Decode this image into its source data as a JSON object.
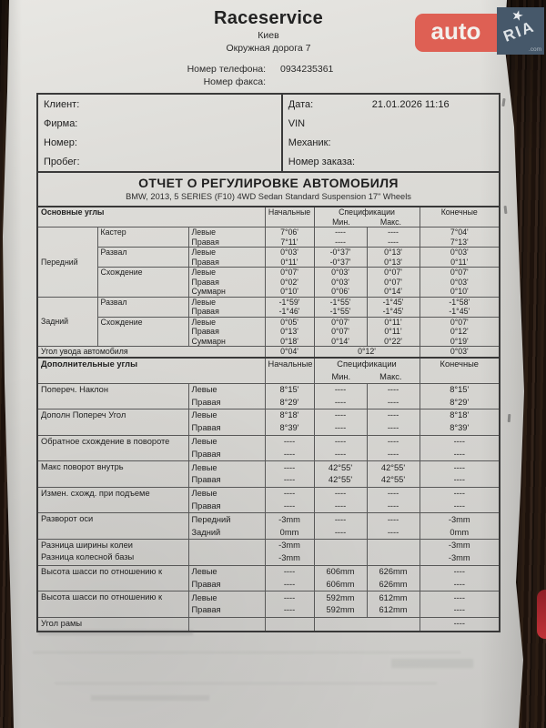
{
  "colors": {
    "paper": "#d8d7d3",
    "wood": "#241811",
    "table_border": "#3a3a3a",
    "logo_auto_bg": "#de6054",
    "logo_ria_bg": "#46586a",
    "red_object": "#a3232b"
  },
  "header": {
    "company": "Raceservice",
    "city": "Киев",
    "address": "Окружная дорога 7",
    "phone_label": "Номер телефона:",
    "phone_value": "0934235361",
    "fax_label": "Номер факса:"
  },
  "watermark": {
    "auto_text": "auto",
    "ria_text": "RIA",
    "com_text": ".com",
    "star_icon": "star"
  },
  "client_box": {
    "left_rows": [
      "Клиент:",
      "Фирма:",
      "Номер:",
      "Пробег:"
    ],
    "right_rows": [
      {
        "label": "Дата:",
        "value": "21.01.2026  11:16"
      },
      {
        "label": "VIN",
        "value": ""
      },
      {
        "label": "Механик:",
        "value": ""
      },
      {
        "label": "Номер заказа:",
        "value": ""
      }
    ]
  },
  "report_title": {
    "title": "ОТЧЕТ О РЕГУЛИРОВКЕ АВТОМОБИЛЯ",
    "subtitle": "BMW, 2013, 5 SERIES (F10) 4WD Sedan Standard Suspension 17\" Wheels"
  },
  "columns": {
    "initial": "Начальные",
    "spec": "Спецификации",
    "min": "Мин.",
    "max": "Макс.",
    "final": "Конечные"
  },
  "main_section": {
    "title": "Основные углы",
    "groups": [
      {
        "group": "Передний",
        "params": [
          {
            "name": "Кастер",
            "lines": [
              [
                "Левые",
                "7°06'",
                "----",
                "----",
                "7°04'"
              ],
              [
                "Правая",
                "7°11'",
                "----",
                "----",
                "7°13'"
              ]
            ]
          },
          {
            "name": "Развал",
            "lines": [
              [
                "Левые",
                "0°03'",
                "-0°37'",
                "0°13'",
                "0°03'"
              ],
              [
                "Правая",
                "0°11'",
                "-0°37'",
                "0°13'",
                "0°11'"
              ]
            ]
          },
          {
            "name": "Схождение",
            "lines": [
              [
                "Левые",
                "0°07'",
                "0°03'",
                "0°07'",
                "0°07'"
              ],
              [
                "Правая",
                "0°02'",
                "0°03'",
                "0°07'",
                "0°03'"
              ],
              [
                "Суммарн",
                "0°10'",
                "0°06'",
                "0°14'",
                "0°10'"
              ]
            ]
          }
        ]
      },
      {
        "group": "Задний",
        "params": [
          {
            "name": "Развал",
            "lines": [
              [
                "Левые",
                "-1°59'",
                "-1°55'",
                "-1°45'",
                "-1°58'"
              ],
              [
                "Правая",
                "-1°46'",
                "-1°55'",
                "-1°45'",
                "-1°45'"
              ]
            ]
          },
          {
            "name": "Схождение",
            "lines": [
              [
                "Левые",
                "0°05'",
                "0°07'",
                "0°11'",
                "0°07'"
              ],
              [
                "Правая",
                "0°13'",
                "0°07'",
                "0°11'",
                "0°12'"
              ],
              [
                "Суммарн",
                "0°18'",
                "0°14'",
                "0°22'",
                "0°19'"
              ]
            ]
          }
        ]
      }
    ],
    "drift_row": {
      "label": "Угол увода автомобиля",
      "initial": "0°04'",
      "spec": "0°12'",
      "final": "0°03'"
    }
  },
  "extra_section": {
    "title": "Дополнительные углы",
    "rows": [
      {
        "label": "Попереч. Наклон",
        "lines": [
          [
            "Левые",
            "8°15'",
            "----",
            "----",
            "8°15'"
          ],
          [
            "Правая",
            "8°29'",
            "----",
            "----",
            "8°29'"
          ]
        ]
      },
      {
        "label": "Дополн Попереч Угол",
        "lines": [
          [
            "Левые",
            "8°18'",
            "----",
            "----",
            "8°18'"
          ],
          [
            "Правая",
            "8°39'",
            "----",
            "----",
            "8°39'"
          ]
        ]
      },
      {
        "label": "Обратное схождение в повороте",
        "lines": [
          [
            "Левые",
            "----",
            "----",
            "----",
            "----"
          ],
          [
            "Правая",
            "----",
            "----",
            "----",
            "----"
          ]
        ]
      },
      {
        "label": "Макс поворот внутрь",
        "lines": [
          [
            "Левые",
            "----",
            "42°55'",
            "42°55'",
            "----"
          ],
          [
            "Правая",
            "----",
            "42°55'",
            "42°55'",
            "----"
          ]
        ]
      },
      {
        "label": "Измен. схожд. при подъеме",
        "lines": [
          [
            "Левые",
            "----",
            "----",
            "----",
            "----"
          ],
          [
            "Правая",
            "----",
            "----",
            "----",
            "----"
          ]
        ]
      },
      {
        "label": "Разворот оси",
        "lines": [
          [
            "Передний",
            "-3mm",
            "----",
            "----",
            "-3mm"
          ],
          [
            "Задний",
            "0mm",
            "----",
            "----",
            "0mm"
          ]
        ]
      },
      {
        "label": "Разница ширины колеи",
        "label2": "Разница колесной базы",
        "lines": [
          [
            "",
            "-3mm",
            "",
            "",
            "-3mm"
          ],
          [
            "",
            "-3mm",
            "",
            "",
            "-3mm"
          ]
        ]
      },
      {
        "label": "Высота шасси по отношению к",
        "lines": [
          [
            "Левые",
            "----",
            "606mm",
            "626mm",
            "----"
          ],
          [
            "Правая",
            "----",
            "606mm",
            "626mm",
            "----"
          ]
        ]
      },
      {
        "label": "Высота шасси по отношению к",
        "lines": [
          [
            "Левые",
            "----",
            "592mm",
            "612mm",
            "----"
          ],
          [
            "Правая",
            "----",
            "592mm",
            "612mm",
            "----"
          ]
        ]
      },
      {
        "label": "Угол рамы",
        "merge_spec": true,
        "lines": [
          [
            "",
            "",
            "",
            "----"
          ]
        ]
      }
    ]
  }
}
